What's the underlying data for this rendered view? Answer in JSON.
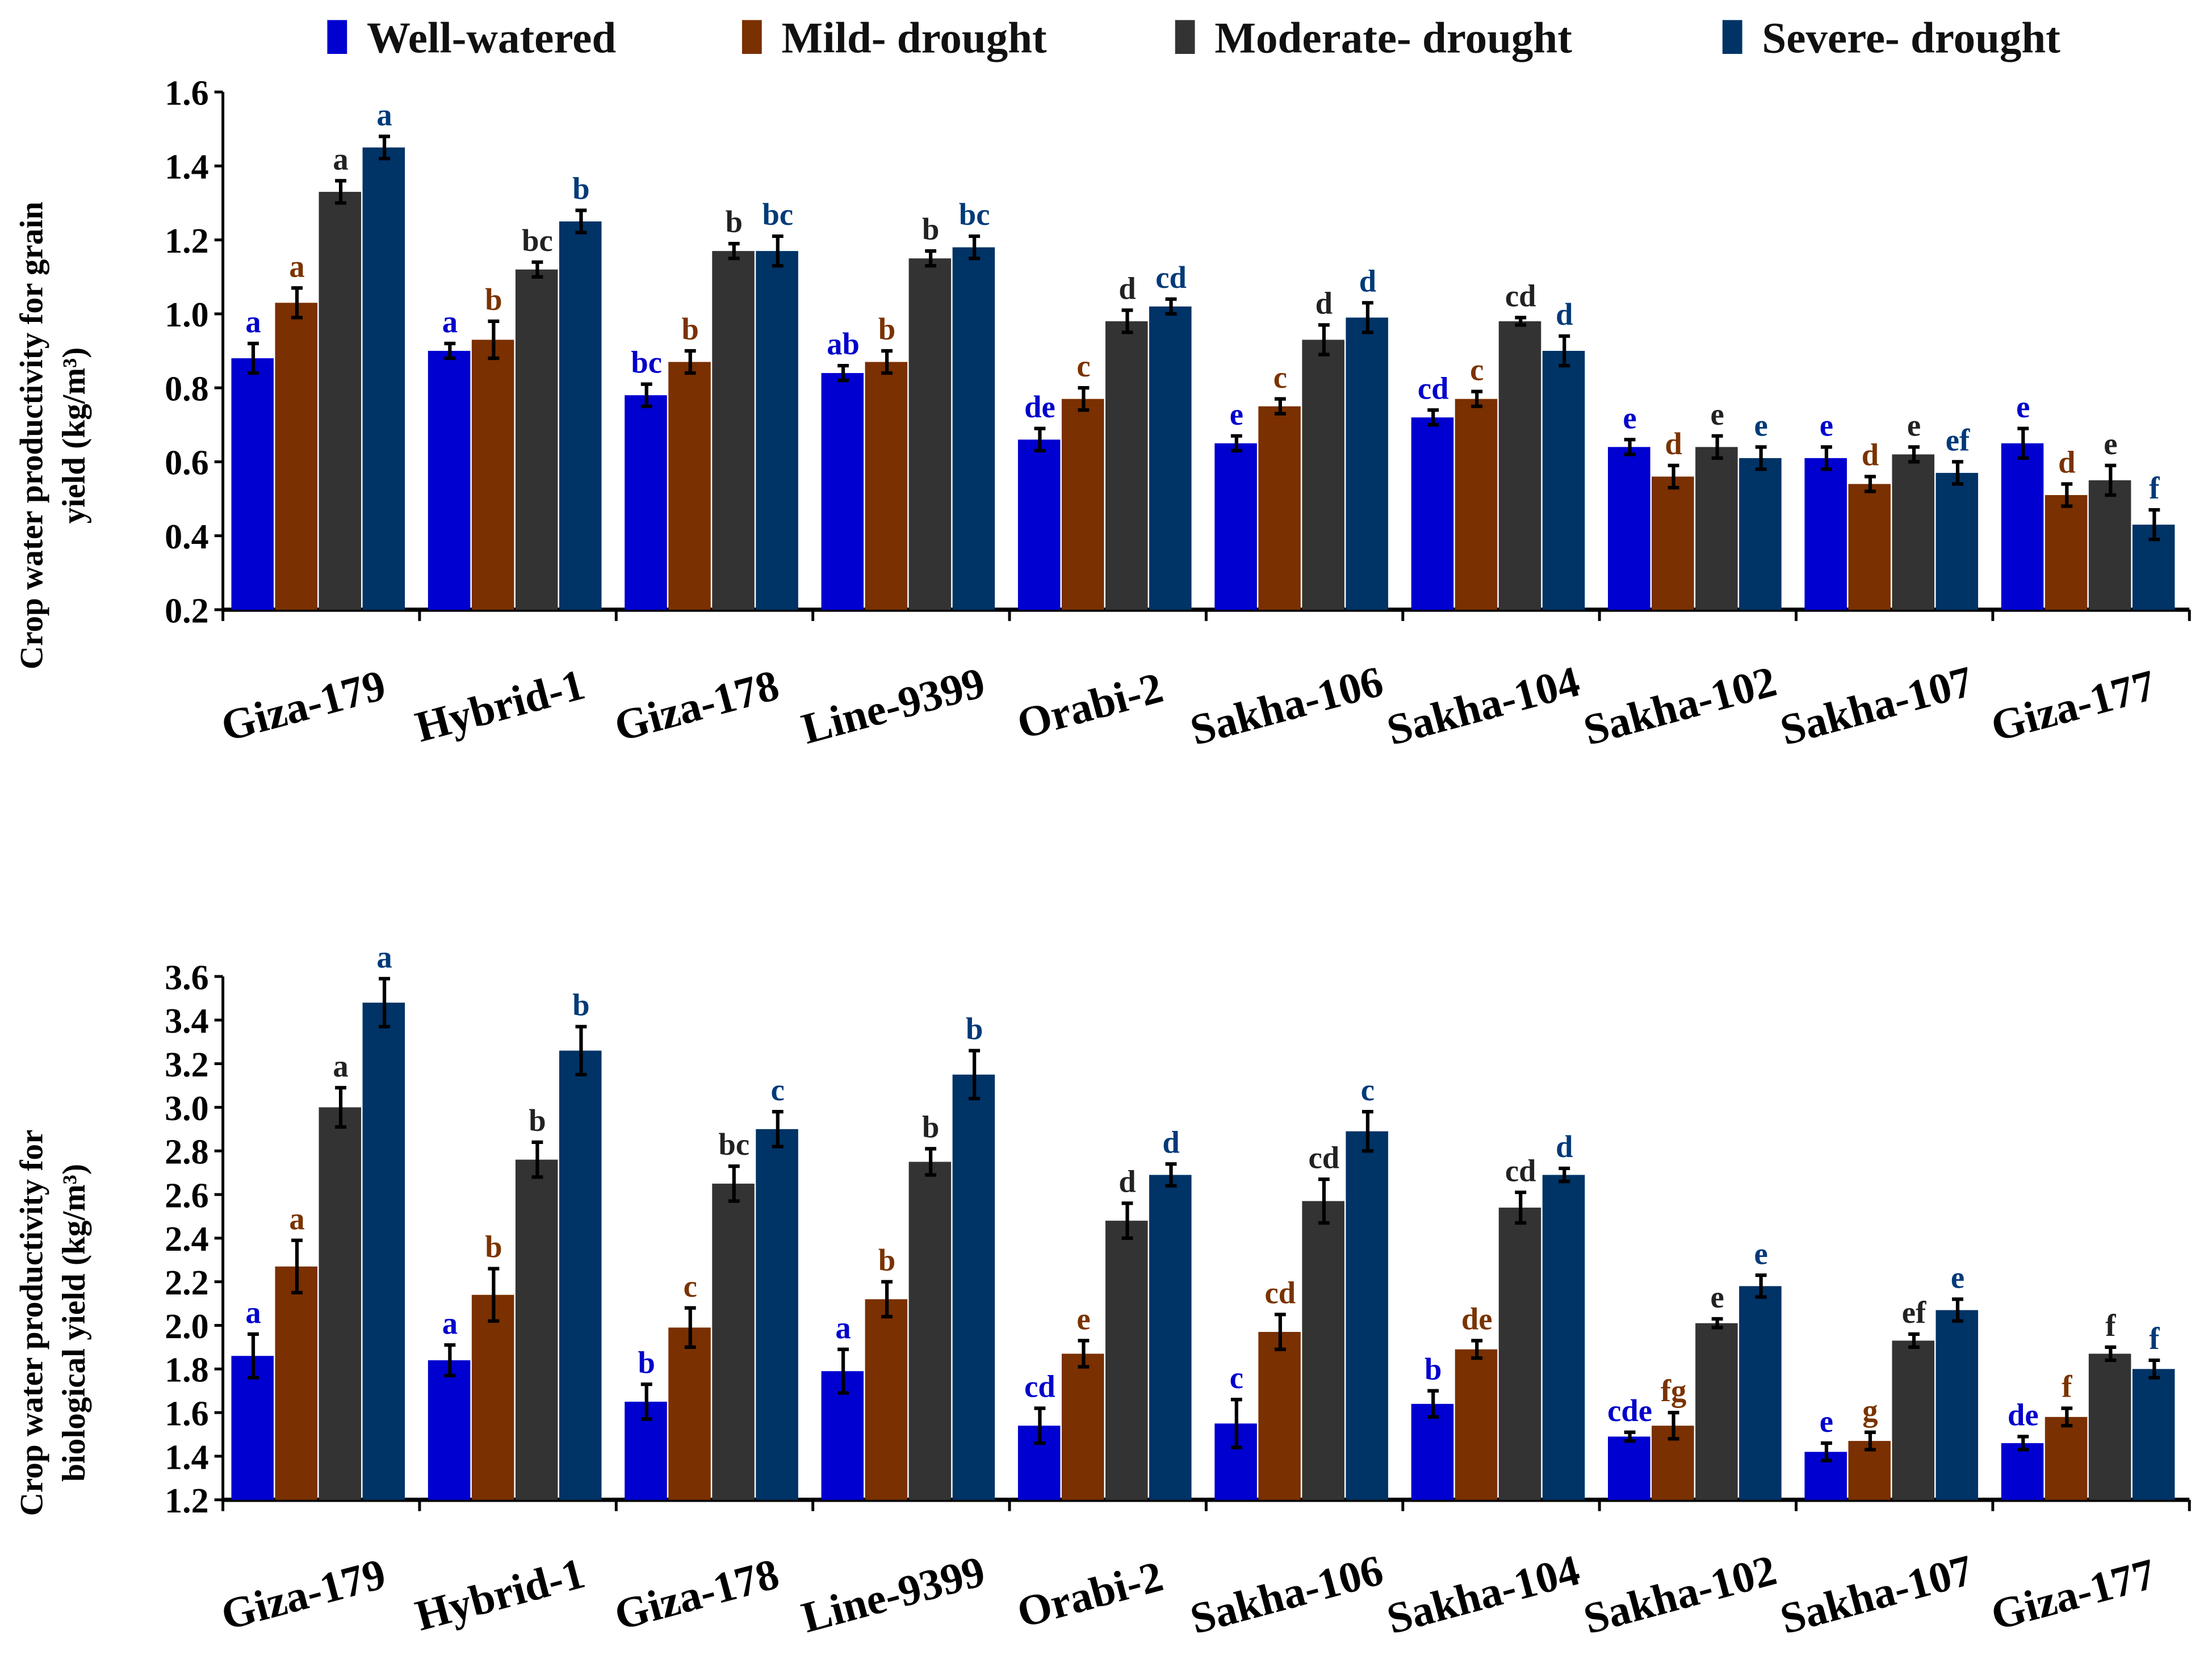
{
  "legend": [
    {
      "name": "Well-watered",
      "color": "#0000d0",
      "label_color": "#0000cc"
    },
    {
      "name": "Mild- drought",
      "color": "#7a3000",
      "label_color": "#7a3300"
    },
    {
      "name": "Moderate- drought",
      "color": "#333333",
      "label_color": "#222222"
    },
    {
      "name": "Severe- drought",
      "color": "#003366",
      "label_color": "#003a78"
    }
  ],
  "chart_data": [
    {
      "type": "bar",
      "title": "",
      "xlabel": "",
      "ylabel": "Crop water productivity for grain yield (kg/m³)",
      "ylabel_lines": [
        "Crop water productivity for grain",
        "yield (kg/m³)"
      ],
      "ylim": [
        0.2,
        1.6
      ],
      "yticks": [
        "0.2",
        "0.4",
        "0.6",
        "0.8",
        "1.0",
        "1.2",
        "1.4",
        "1.6"
      ],
      "legend_position": "top",
      "categories": [
        "Giza-179",
        "Hybrid-1",
        "Giza-178",
        "Line-9399",
        "Orabi-2",
        "Sakha-106",
        "Sakha-104",
        "Sakha-102",
        "Sakha-107",
        "Giza-177"
      ],
      "series": [
        {
          "name": "Well-watered",
          "values": [
            0.88,
            0.9,
            0.78,
            0.84,
            0.66,
            0.65,
            0.72,
            0.64,
            0.61,
            0.65
          ],
          "errors": [
            0.04,
            0.02,
            0.03,
            0.02,
            0.03,
            0.02,
            0.02,
            0.02,
            0.03,
            0.04
          ],
          "letters": [
            "a",
            "a",
            "bc",
            "ab",
            "de",
            "e",
            "cd",
            "e",
            "e",
            "e"
          ]
        },
        {
          "name": "Mild- drought",
          "values": [
            1.03,
            0.93,
            0.87,
            0.87,
            0.77,
            0.75,
            0.77,
            0.56,
            0.54,
            0.51
          ],
          "errors": [
            0.04,
            0.05,
            0.03,
            0.03,
            0.03,
            0.02,
            0.02,
            0.03,
            0.02,
            0.03
          ],
          "letters": [
            "a",
            "b",
            "b",
            "b",
            "c",
            "c",
            "c",
            "d",
            "d",
            "d"
          ]
        },
        {
          "name": "Moderate- drought",
          "values": [
            1.33,
            1.12,
            1.17,
            1.15,
            0.98,
            0.93,
            0.98,
            0.64,
            0.62,
            0.55
          ],
          "errors": [
            0.03,
            0.02,
            0.02,
            0.02,
            0.03,
            0.04,
            0.01,
            0.03,
            0.02,
            0.04
          ],
          "letters": [
            "a",
            "bc",
            "b",
            "b",
            "d",
            "d",
            "cd",
            "e",
            "e",
            "e"
          ]
        },
        {
          "name": "Severe- drought",
          "values": [
            1.45,
            1.25,
            1.17,
            1.18,
            1.02,
            0.99,
            0.9,
            0.61,
            0.57,
            0.43
          ],
          "errors": [
            0.03,
            0.03,
            0.04,
            0.03,
            0.02,
            0.04,
            0.04,
            0.03,
            0.03,
            0.04
          ],
          "letters": [
            "a",
            "b",
            "bc",
            "bc",
            "cd",
            "d",
            "d",
            "e",
            "ef",
            "f"
          ]
        }
      ]
    },
    {
      "type": "bar",
      "title": "",
      "xlabel": "",
      "ylabel": "Crop water productivity for biological yield (kg/m³)",
      "ylabel_lines": [
        "Crop water productivity for",
        "biological yield (kg/m³)"
      ],
      "ylim": [
        1.2,
        3.6
      ],
      "yticks": [
        "1.2",
        "1.4",
        "1.6",
        "1.8",
        "2.0",
        "2.2",
        "2.4",
        "2.6",
        "2.8",
        "3.0",
        "3.2",
        "3.4",
        "3.6"
      ],
      "categories": [
        "Giza-179",
        "Hybrid-1",
        "Giza-178",
        "Line-9399",
        "Orabi-2",
        "Sakha-106",
        "Sakha-104",
        "Sakha-102",
        "Sakha-107",
        "Giza-177"
      ],
      "series": [
        {
          "name": "Well-watered",
          "values": [
            1.86,
            1.84,
            1.65,
            1.79,
            1.54,
            1.55,
            1.64,
            1.49,
            1.42,
            1.46
          ],
          "errors": [
            0.1,
            0.07,
            0.08,
            0.1,
            0.08,
            0.11,
            0.06,
            0.02,
            0.04,
            0.03
          ],
          "letters": [
            "a",
            "a",
            "b",
            "a",
            "cd",
            "c",
            "b",
            "cde",
            "e",
            "de"
          ]
        },
        {
          "name": "Mild- drought",
          "values": [
            2.27,
            2.14,
            1.99,
            2.12,
            1.87,
            1.97,
            1.89,
            1.54,
            1.47,
            1.58
          ],
          "errors": [
            0.12,
            0.12,
            0.09,
            0.08,
            0.06,
            0.08,
            0.04,
            0.06,
            0.04,
            0.04
          ],
          "letters": [
            "a",
            "b",
            "c",
            "b",
            "e",
            "cd",
            "de",
            "fg",
            "g",
            "f"
          ]
        },
        {
          "name": "Moderate- drought",
          "values": [
            3.0,
            2.76,
            2.65,
            2.75,
            2.48,
            2.57,
            2.54,
            2.01,
            1.93,
            1.87
          ],
          "errors": [
            0.09,
            0.08,
            0.08,
            0.06,
            0.08,
            0.1,
            0.07,
            0.02,
            0.03,
            0.03
          ],
          "letters": [
            "a",
            "b",
            "bc",
            "b",
            "d",
            "cd",
            "cd",
            "e",
            "ef",
            "f"
          ]
        },
        {
          "name": "Severe- drought",
          "values": [
            3.48,
            3.26,
            2.9,
            3.15,
            2.69,
            2.89,
            2.69,
            2.18,
            2.07,
            1.8
          ],
          "errors": [
            0.11,
            0.11,
            0.08,
            0.11,
            0.05,
            0.09,
            0.03,
            0.05,
            0.05,
            0.04
          ],
          "letters": [
            "a",
            "b",
            "c",
            "b",
            "d",
            "c",
            "d",
            "e",
            "e",
            "f"
          ]
        }
      ]
    }
  ]
}
